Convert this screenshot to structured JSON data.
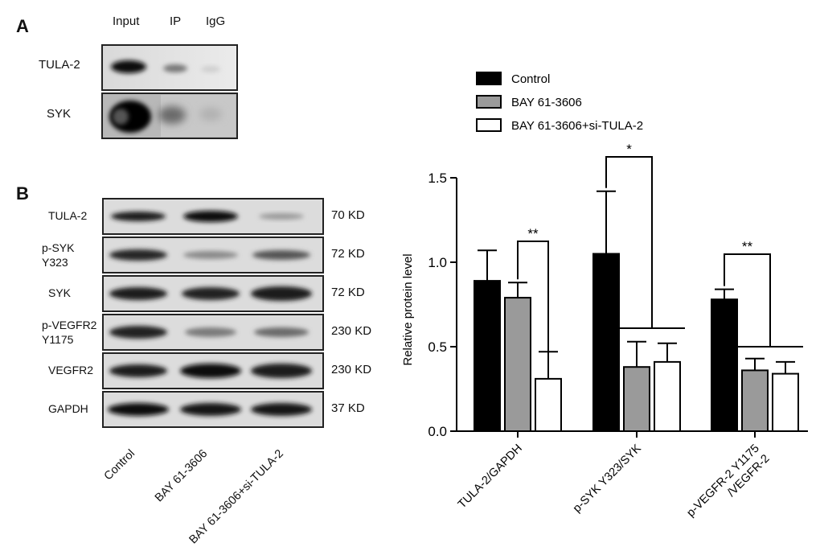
{
  "panel_a": {
    "letter": "A",
    "columns": [
      "Input",
      "IP",
      "IgG"
    ],
    "rows": [
      "TULA-2",
      "SYK"
    ]
  },
  "panel_b": {
    "letter": "B",
    "rows": [
      {
        "label": "TULA-2",
        "size": "70 KD"
      },
      {
        "label": "p-SYK\nY323",
        "size": "72 KD"
      },
      {
        "label": "SYK",
        "size": "72 KD"
      },
      {
        "label": "p-VEGFR2\nY1175",
        "size": "230 KD"
      },
      {
        "label": "VEGFR2",
        "size": "230 KD"
      },
      {
        "label": "GAPDH",
        "size": "37 KD"
      }
    ],
    "lanes": [
      "Control",
      "BAY 61-3606",
      "BAY 61-3606+si-TULA-2"
    ]
  },
  "chart_data": {
    "type": "bar",
    "categories": [
      "TULA-2/GAPDH",
      "p-SYK Y323/SYK",
      "p-VEGFR-2 Y1175\n/VEGFR-2"
    ],
    "series": [
      {
        "name": "Control",
        "values": [
          0.89,
          1.05,
          0.78
        ],
        "errors": [
          0.18,
          0.37,
          0.06
        ],
        "color": "#000000"
      },
      {
        "name": "BAY 61-3606",
        "values": [
          0.79,
          0.38,
          0.36
        ],
        "errors": [
          0.09,
          0.15,
          0.07
        ],
        "color": "#9a9a9a"
      },
      {
        "name": "BAY 61-3606+si-TULA-2",
        "values": [
          0.31,
          0.41,
          0.34
        ],
        "errors": [
          0.16,
          0.11,
          0.07
        ],
        "color": "#ffffff"
      }
    ],
    "ylabel": "Relative protein level",
    "ylim": [
      0,
      1.5
    ],
    "yticks": [
      "0.0",
      "0.5",
      "1.0",
      "1.5"
    ],
    "significance": [
      {
        "category": 0,
        "label": "**"
      },
      {
        "category": 1,
        "label": "*"
      },
      {
        "category": 2,
        "label": "**"
      }
    ],
    "legend": "top"
  }
}
